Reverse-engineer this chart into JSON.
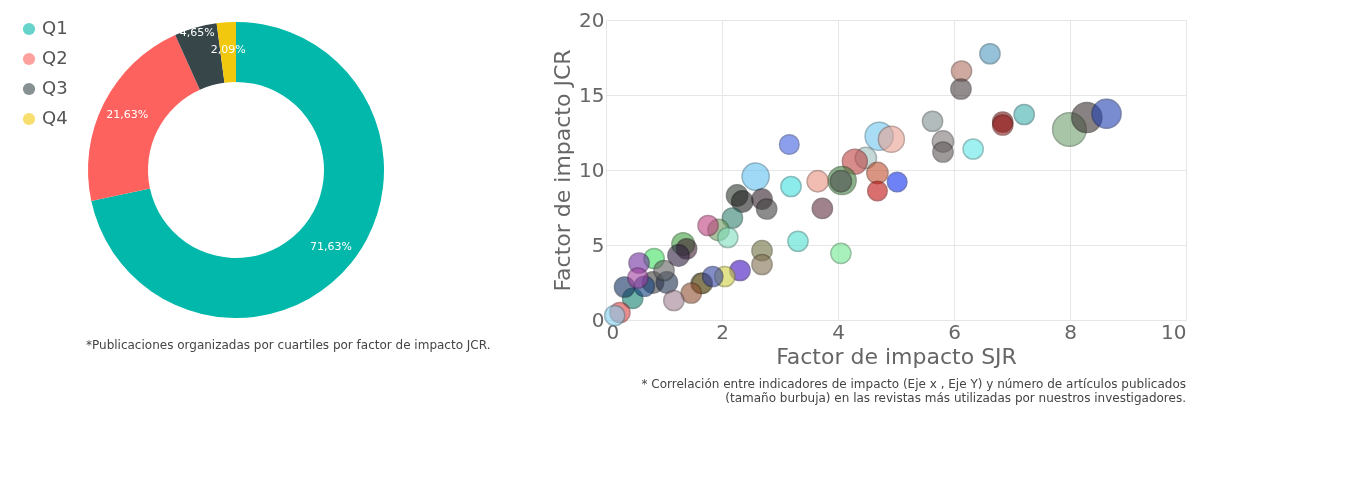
{
  "chart_data": [
    {
      "type": "donut",
      "categories": [
        "Q1",
        "Q2",
        "Q3",
        "Q4"
      ],
      "values": [
        71.63,
        21.63,
        4.65,
        2.09
      ],
      "colors": [
        "#01b8aa",
        "#fd625e",
        "#374649",
        "#f2c80f"
      ],
      "value_labels": [
        "71,63%",
        "21,63%",
        "4,65%",
        "2,09%"
      ],
      "legend": "left",
      "annotations": [
        "*Publicaciones organizadas por cuartiles por factor de impacto JCR."
      ]
    },
    {
      "type": "bubble",
      "xlabel": "Factor de impacto SJR",
      "ylabel": "Factor de impacto JCR",
      "xlim": [
        0,
        10
      ],
      "xticks": [
        0,
        2,
        4,
        6,
        8,
        10
      ],
      "ylim": [
        0,
        20
      ],
      "yticks": [
        0,
        5,
        10,
        15,
        20
      ],
      "grid": true,
      "x": [
        6.62,
        6.13,
        6.12,
        7.21,
        6.84,
        6.84,
        7.99,
        8.29,
        8.63,
        5.63,
        5.81,
        5.81,
        6.33,
        4.71,
        4.92,
        4.48,
        4.29,
        4.68,
        5.02,
        4.68,
        4.07,
        4.05,
        3.65,
        3.16,
        2.58,
        3.19,
        3.73,
        3.31,
        4.05,
        2.69,
        2.69,
        2.26,
        2.35,
        2.69,
        2.77,
        2.18,
        1.94,
        1.76,
        1.33,
        1.39,
        0.83,
        0.57,
        2.31,
        2.05,
        0.81,
        1.05,
        1.64,
        1.66,
        1.47,
        0.46,
        0.24,
        0.15,
        0.32,
        0.66,
        1.17,
        1.84,
        1.0,
        1.25,
        2.1,
        0.55
      ],
      "values": [
        17.75,
        16.6,
        15.4,
        13.7,
        13.2,
        13.0,
        12.7,
        13.5,
        13.75,
        13.25,
        11.9,
        11.2,
        11.4,
        12.25,
        12.05,
        10.8,
        10.56,
        9.8,
        9.2,
        8.6,
        9.3,
        9.25,
        9.25,
        11.7,
        9.56,
        8.9,
        7.44,
        5.25,
        4.44,
        4.62,
        3.7,
        8.3,
        7.9,
        8.06,
        7.4,
        6.8,
        6.0,
        6.3,
        5.06,
        4.75,
        4.1,
        3.8,
        3.3,
        2.9,
        2.5,
        2.5,
        2.44,
        2.44,
        1.8,
        1.44,
        0.5,
        0.3,
        2.2,
        2.25,
        1.3,
        2.9,
        3.3,
        4.3,
        5.5,
        2.8
      ],
      "sizes": [
        0.36,
        0.36,
        0.36,
        0.36,
        0.36,
        0.36,
        1.0,
        0.8,
        0.75,
        0.36,
        0.4,
        0.36,
        0.36,
        0.7,
        0.6,
        0.4,
        0.55,
        0.4,
        0.34,
        0.34,
        0.7,
        0.4,
        0.4,
        0.34,
        0.65,
        0.36,
        0.36,
        0.36,
        0.36,
        0.36,
        0.36,
        0.4,
        0.4,
        0.36,
        0.36,
        0.36,
        0.4,
        0.36,
        0.45,
        0.36,
        0.36,
        0.36,
        0.36,
        0.36,
        0.4,
        0.4,
        0.36,
        0.36,
        0.36,
        0.36,
        0.36,
        0.36,
        0.36,
        0.36,
        0.36,
        0.36,
        0.36,
        0.4,
        0.36,
        0.36
      ],
      "colors": [
        "#4f9ac0",
        "#b07060",
        "#4a4040",
        "#40b0b0",
        "#801010",
        "#901818",
        "#70a070",
        "#3a3030",
        "#2040b0",
        "#809090",
        "#807878",
        "#605858",
        "#60e8e8",
        "#70c8f0",
        "#e8a090",
        "#a0c0c0",
        "#c04040",
        "#c05030",
        "#1030f0",
        "#c01010",
        "#408040",
        "#505050",
        "#e89080",
        "#4060e0",
        "#60c0f0",
        "#40e0e0",
        "#603040",
        "#50e0d0",
        "#70e890",
        "#707040",
        "#807050",
        "#303830",
        "#202020",
        "#302028",
        "#404040",
        "#308070",
        "#70a060",
        "#c04080",
        "#40a040",
        "#402030",
        "#40e060",
        "#7030a0",
        "#4010c0",
        "#d0d040",
        "#404040",
        "#203050",
        "#505050",
        "#807030",
        "#905030",
        "#108070",
        "#e04040",
        "#80d0f0",
        "#103060",
        "#104080",
        "#a08090",
        "#3040a0",
        "#606060",
        "#302040",
        "#80e0c0",
        "#a040a0"
      ],
      "annotations": [
        "* Correlación entre indicadores de impacto (Eje x , Eje Y) y número de artículos publicados (tamaño burbuja) en las revistas más utilizadas por nuestros investigadores."
      ]
    }
  ]
}
